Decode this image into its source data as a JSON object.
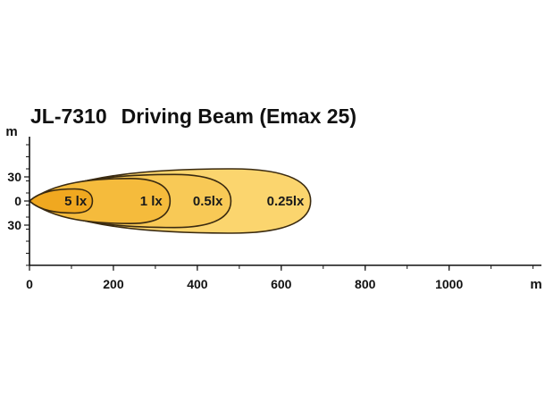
{
  "title": {
    "model": "JL-7310",
    "beam": "Driving Beam (Emax 25)"
  },
  "colors": {
    "axis": "#111111",
    "iso_5": "#f0a820",
    "iso_1": "#f5bb3c",
    "iso_0_5": "#f8c956",
    "iso_0_25": "#fbd56e",
    "outline": "#3a2a10"
  },
  "chart_data": {
    "type": "isolux",
    "x_unit": "m",
    "y_unit": "m",
    "xlim": [
      0,
      1220
    ],
    "ylim": [
      -80,
      80
    ],
    "x_ticks": [
      0,
      200,
      400,
      600,
      800,
      1000
    ],
    "y_ticks": [
      {
        "value": 30,
        "label": "30"
      },
      {
        "value": 0,
        "label": "0"
      },
      {
        "value": -30,
        "label": "30"
      }
    ],
    "isolines": [
      {
        "label": "0.25lx",
        "reach": 670,
        "half_width": 40,
        "label_x": 610
      },
      {
        "label": "0.5lx",
        "reach": 480,
        "half_width": 33,
        "label_x": 425
      },
      {
        "label": "1 lx",
        "reach": 335,
        "half_width": 28,
        "label_x": 290
      },
      {
        "label": "5 lx",
        "reach": 150,
        "half_width": 15,
        "label_x": 110
      }
    ]
  }
}
